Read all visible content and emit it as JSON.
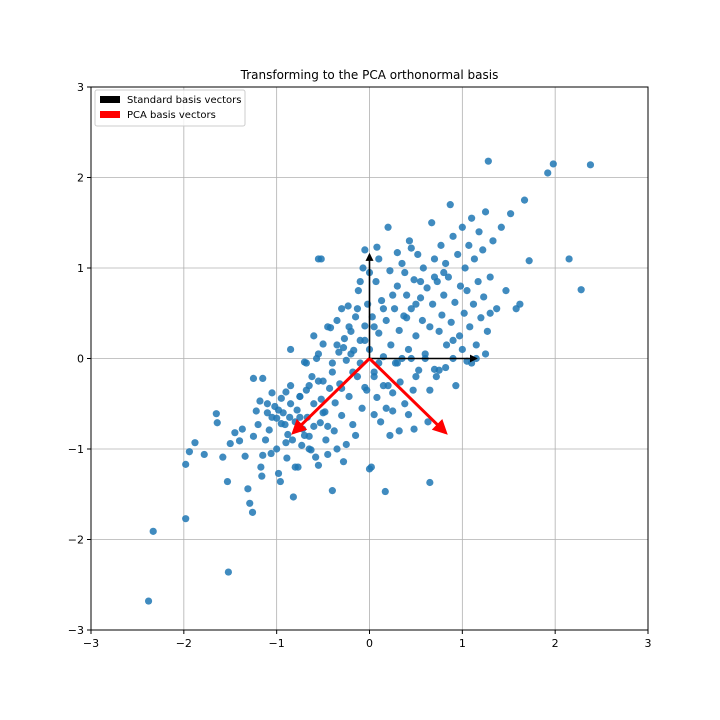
{
  "chart_data": {
    "type": "scatter",
    "title": "Transforming to the PCA orthonormal basis",
    "xlabel": "",
    "ylabel": "",
    "xlim": [
      -3,
      3
    ],
    "ylim": [
      -3,
      3
    ],
    "xticks": [
      -3,
      -2,
      -1,
      0,
      1,
      2,
      3
    ],
    "yticks": [
      -3,
      -2,
      -1,
      0,
      1,
      2,
      3
    ],
    "xtick_labels": [
      "−3",
      "−2",
      "−1",
      "0",
      "1",
      "2",
      "3"
    ],
    "ytick_labels": [
      "−3",
      "−2",
      "−1",
      "0",
      "1",
      "2",
      "3"
    ],
    "grid": true,
    "legend_position": "top-left",
    "point_color": "#1f77b4",
    "legend": [
      {
        "label": "Standard basis vectors",
        "color": "#000000"
      },
      {
        "label": "PCA basis vectors",
        "color": "#ff0000"
      }
    ],
    "vectors": [
      {
        "series": "Standard basis vectors",
        "x0": 0,
        "y0": 0,
        "x1": 1.15,
        "y1": 0,
        "color": "#000000"
      },
      {
        "series": "Standard basis vectors",
        "x0": 0,
        "y0": 0,
        "x1": 0,
        "y1": 1.15,
        "color": "#000000"
      },
      {
        "series": "PCA basis vectors",
        "x0": 0,
        "y0": 0,
        "x1": -0.82,
        "y1": -0.82,
        "color": "#ff0000"
      },
      {
        "series": "PCA basis vectors",
        "x0": 0,
        "y0": 0,
        "x1": 0.82,
        "y1": -0.82,
        "color": "#ff0000"
      }
    ],
    "points": [
      [
        -2.38,
        -2.68
      ],
      [
        -2.33,
        -1.91
      ],
      [
        -1.52,
        -2.36
      ],
      [
        -1.98,
        -1.77
      ],
      [
        -1.98,
        -1.17
      ],
      [
        -1.94,
        -1.03
      ],
      [
        -1.88,
        -0.93
      ],
      [
        -1.78,
        -1.06
      ],
      [
        -1.65,
        -0.61
      ],
      [
        -1.64,
        -0.71
      ],
      [
        -1.58,
        -1.09
      ],
      [
        -1.53,
        -1.36
      ],
      [
        -1.5,
        -0.94
      ],
      [
        -1.45,
        -0.82
      ],
      [
        -1.4,
        -0.91
      ],
      [
        -1.37,
        -0.78
      ],
      [
        -1.34,
        -1.08
      ],
      [
        -1.31,
        -1.44
      ],
      [
        -1.29,
        -1.6
      ],
      [
        -1.26,
        -1.7
      ],
      [
        -1.25,
        -0.86
      ],
      [
        -1.22,
        -0.58
      ],
      [
        -1.2,
        -0.73
      ],
      [
        -1.18,
        -0.47
      ],
      [
        -1.17,
        -1.2
      ],
      [
        -1.16,
        -1.3
      ],
      [
        -1.15,
        -1.07
      ],
      [
        -1.12,
        -0.9
      ],
      [
        -1.1,
        -0.5
      ],
      [
        -1.08,
        -0.79
      ],
      [
        -1.06,
        -1.05
      ],
      [
        -1.05,
        -0.38
      ],
      [
        -1.02,
        -0.53
      ],
      [
        -1.0,
        -0.66
      ],
      [
        -0.98,
        -1.27
      ],
      [
        -0.96,
        -1.36
      ],
      [
        -0.95,
        -0.44
      ],
      [
        -0.93,
        -0.6
      ],
      [
        -0.91,
        -0.73
      ],
      [
        -0.89,
        -1.1
      ],
      [
        -0.88,
        -0.84
      ],
      [
        -0.86,
        -0.65
      ],
      [
        -0.85,
        -0.3
      ],
      [
        -0.83,
        -0.9
      ],
      [
        -0.82,
        -1.53
      ],
      [
        -0.8,
        -0.7
      ],
      [
        -0.78,
        -0.57
      ],
      [
        -0.77,
        -1.2
      ],
      [
        -0.75,
        -0.42
      ],
      [
        -0.73,
        -0.96
      ],
      [
        -0.72,
        -0.78
      ],
      [
        -0.7,
        -0.04
      ],
      [
        -0.68,
        -0.35
      ],
      [
        -0.67,
        -0.65
      ],
      [
        -0.65,
        -0.86
      ],
      [
        -0.63,
        -1.01
      ],
      [
        -0.62,
        -0.2
      ],
      [
        -0.6,
        -0.5
      ],
      [
        -0.58,
        -1.09
      ],
      [
        -0.57,
        0.0
      ],
      [
        -0.55,
        -0.25
      ],
      [
        -0.53,
        -0.71
      ],
      [
        -0.52,
        -0.45
      ],
      [
        -0.5,
        0.16
      ],
      [
        -0.48,
        -0.59
      ],
      [
        -0.47,
        -0.9
      ],
      [
        -0.45,
        -1.06
      ],
      [
        -0.43,
        -0.33
      ],
      [
        -0.42,
        0.34
      ],
      [
        -0.4,
        -0.15
      ],
      [
        -0.38,
        -0.8
      ],
      [
        -0.37,
        -0.49
      ],
      [
        -0.35,
        0.42
      ],
      [
        -0.33,
        0.07
      ],
      [
        -0.32,
        -0.28
      ],
      [
        -0.3,
        -0.63
      ],
      [
        -0.28,
        -1.14
      ],
      [
        -0.27,
        0.22
      ],
      [
        -0.25,
        -0.02
      ],
      [
        -0.23,
        0.58
      ],
      [
        -0.22,
        -0.42
      ],
      [
        -0.2,
        0.3
      ],
      [
        -0.18,
        -0.73
      ],
      [
        -0.17,
        0.09
      ],
      [
        -0.15,
        0.46
      ],
      [
        -0.13,
        -0.2
      ],
      [
        -0.12,
        0.75
      ],
      [
        -0.1,
        0.2
      ],
      [
        -0.08,
        -0.55
      ],
      [
        -0.07,
        1.0
      ],
      [
        -0.05,
        0.36
      ],
      [
        -0.03,
        -0.35
      ],
      [
        -0.02,
        0.6
      ],
      [
        0.0,
        0.1
      ],
      [
        0.02,
        -1.2
      ],
      [
        0.03,
        0.46
      ],
      [
        0.05,
        -0.15
      ],
      [
        0.07,
        0.85
      ],
      [
        0.08,
        -0.43
      ],
      [
        0.1,
        0.28
      ],
      [
        0.12,
        -0.7
      ],
      [
        0.13,
        0.64
      ],
      [
        0.15,
        0.02
      ],
      [
        0.17,
        -1.47
      ],
      [
        0.18,
        0.42
      ],
      [
        0.2,
        -0.3
      ],
      [
        0.22,
        0.97
      ],
      [
        0.23,
        0.15
      ],
      [
        0.25,
        -0.58
      ],
      [
        0.27,
        0.55
      ],
      [
        0.28,
        -0.05
      ],
      [
        0.3,
        0.8
      ],
      [
        0.32,
        0.31
      ],
      [
        0.33,
        -0.26
      ],
      [
        0.35,
        1.05
      ],
      [
        0.37,
        0.47
      ],
      [
        0.38,
        -0.5
      ],
      [
        0.4,
        0.7
      ],
      [
        0.42,
        0.1
      ],
      [
        0.43,
        1.3
      ],
      [
        0.45,
        0.55
      ],
      [
        0.47,
        -0.35
      ],
      [
        0.48,
        0.87
      ],
      [
        0.5,
        0.25
      ],
      [
        0.52,
        1.15
      ],
      [
        0.53,
        -0.13
      ],
      [
        0.55,
        0.67
      ],
      [
        0.57,
        0.42
      ],
      [
        0.58,
        1.0
      ],
      [
        0.6,
        0.05
      ],
      [
        0.62,
        0.78
      ],
      [
        0.63,
        -0.7
      ],
      [
        0.65,
        0.35
      ],
      [
        0.67,
        1.5
      ],
      [
        0.68,
        0.6
      ],
      [
        0.7,
        1.1
      ],
      [
        0.72,
        -0.2
      ],
      [
        0.73,
        0.85
      ],
      [
        0.75,
        0.3
      ],
      [
        0.77,
        1.25
      ],
      [
        0.78,
        0.48
      ],
      [
        0.8,
        0.7
      ],
      [
        0.82,
        1.05
      ],
      [
        0.83,
        0.15
      ],
      [
        0.85,
        0.9
      ],
      [
        0.87,
        1.7
      ],
      [
        0.88,
        0.4
      ],
      [
        0.9,
        1.35
      ],
      [
        0.92,
        0.62
      ],
      [
        0.93,
        -0.3
      ],
      [
        0.95,
        1.15
      ],
      [
        0.97,
        0.25
      ],
      [
        0.98,
        0.8
      ],
      [
        1.0,
        1.45
      ],
      [
        1.02,
        0.5
      ],
      [
        1.03,
        1.0
      ],
      [
        1.05,
        0.75
      ],
      [
        1.07,
        1.25
      ],
      [
        1.08,
        0.35
      ],
      [
        1.1,
        1.55
      ],
      [
        1.12,
        0.6
      ],
      [
        1.13,
        1.1
      ],
      [
        1.15,
        0.0
      ],
      [
        1.17,
        0.85
      ],
      [
        1.18,
        1.4
      ],
      [
        1.2,
        0.45
      ],
      [
        1.22,
        1.2
      ],
      [
        1.23,
        0.68
      ],
      [
        1.25,
        1.62
      ],
      [
        1.27,
        0.3
      ],
      [
        1.28,
        2.18
      ],
      [
        1.3,
        0.9
      ],
      [
        1.33,
        1.3
      ],
      [
        1.37,
        0.55
      ],
      [
        1.42,
        1.45
      ],
      [
        1.47,
        0.75
      ],
      [
        1.52,
        1.6
      ],
      [
        1.58,
        0.55
      ],
      [
        1.62,
        0.6
      ],
      [
        1.67,
        1.75
      ],
      [
        1.72,
        1.08
      ],
      [
        1.92,
        2.05
      ],
      [
        1.98,
        2.15
      ],
      [
        2.15,
        1.1
      ],
      [
        2.28,
        0.76
      ],
      [
        2.38,
        2.14
      ],
      [
        -0.4,
        -1.46
      ],
      [
        0.0,
        -1.22
      ],
      [
        -0.1,
        -0.05
      ],
      [
        0.1,
        -0.05
      ],
      [
        0.35,
        0.0
      ],
      [
        0.45,
        0.0
      ],
      [
        0.6,
        0.0
      ],
      [
        0.9,
        0.0
      ],
      [
        1.1,
        -0.05
      ],
      [
        0.75,
        -0.13
      ],
      [
        0.65,
        -1.37
      ],
      [
        0.82,
        -0.1
      ],
      [
        0.48,
        -0.78
      ],
      [
        0.32,
        -0.8
      ],
      [
        0.22,
        -0.85
      ],
      [
        0.05,
        -0.62
      ],
      [
        -0.05,
        -0.32
      ],
      [
        0.15,
        -0.3
      ],
      [
        0.25,
        -0.38
      ],
      [
        0.42,
        -0.62
      ],
      [
        -0.3,
        -0.33
      ],
      [
        -0.5,
        -0.6
      ],
      [
        -0.6,
        -0.75
      ],
      [
        -0.7,
        -0.85
      ],
      [
        -0.75,
        -0.65
      ],
      [
        -0.85,
        -0.5
      ],
      [
        -0.95,
        -0.72
      ],
      [
        -0.9,
        -0.93
      ],
      [
        -0.65,
        -1.0
      ],
      [
        -0.45,
        -0.75
      ],
      [
        -0.2,
        0.05
      ],
      [
        -0.05,
        0.2
      ],
      [
        0.05,
        0.35
      ],
      [
        0.15,
        0.55
      ],
      [
        0.25,
        0.7
      ],
      [
        0.4,
        0.45
      ],
      [
        0.5,
        0.6
      ],
      [
        0.55,
        0.85
      ],
      [
        0.7,
        0.9
      ],
      [
        0.8,
        0.95
      ],
      [
        -0.35,
        0.15
      ],
      [
        -0.45,
        0.35
      ],
      [
        -0.55,
        0.05
      ],
      [
        -0.6,
        0.25
      ],
      [
        -0.3,
        0.55
      ],
      [
        -0.1,
        0.85
      ],
      [
        0.0,
        0.95
      ],
      [
        0.1,
        1.1
      ],
      [
        0.3,
        1.17
      ],
      [
        0.45,
        1.22
      ],
      [
        -0.15,
        -0.85
      ],
      [
        -0.25,
        -0.95
      ],
      [
        -0.35,
        -1.0
      ],
      [
        -0.55,
        -1.18
      ],
      [
        -0.8,
        -1.2
      ],
      [
        -1.0,
        -1.0
      ],
      [
        -1.1,
        -0.6
      ],
      [
        -1.05,
        -0.65
      ],
      [
        -0.98,
        -0.57
      ],
      [
        -0.9,
        -0.37
      ],
      [
        0.3,
        -0.05
      ],
      [
        0.5,
        -0.2
      ],
      [
        0.65,
        -0.35
      ],
      [
        0.7,
        -0.12
      ],
      [
        0.9,
        0.2
      ],
      [
        1.0,
        0.1
      ],
      [
        1.05,
        -0.03
      ],
      [
        1.15,
        0.15
      ],
      [
        1.25,
        0.05
      ],
      [
        1.3,
        0.5
      ],
      [
        -0.05,
        1.2
      ],
      [
        0.08,
        1.23
      ],
      [
        0.2,
        1.45
      ],
      [
        0.38,
        0.95
      ],
      [
        -0.13,
        0.55
      ],
      [
        -0.22,
        0.35
      ],
      [
        -0.28,
        0.12
      ],
      [
        -0.18,
        -0.15
      ],
      [
        0.05,
        -0.2
      ],
      [
        0.18,
        -0.55
      ],
      [
        -0.5,
        -0.25
      ],
      [
        -0.65,
        -0.3
      ],
      [
        -0.75,
        -0.42
      ],
      [
        -0.85,
        0.1
      ],
      [
        -1.15,
        -0.22
      ],
      [
        -1.25,
        -0.22
      ],
      [
        -0.52,
        1.1
      ],
      [
        -0.55,
        1.1
      ],
      [
        -0.68,
        -0.05
      ],
      [
        -0.4,
        -0.05
      ]
    ]
  }
}
